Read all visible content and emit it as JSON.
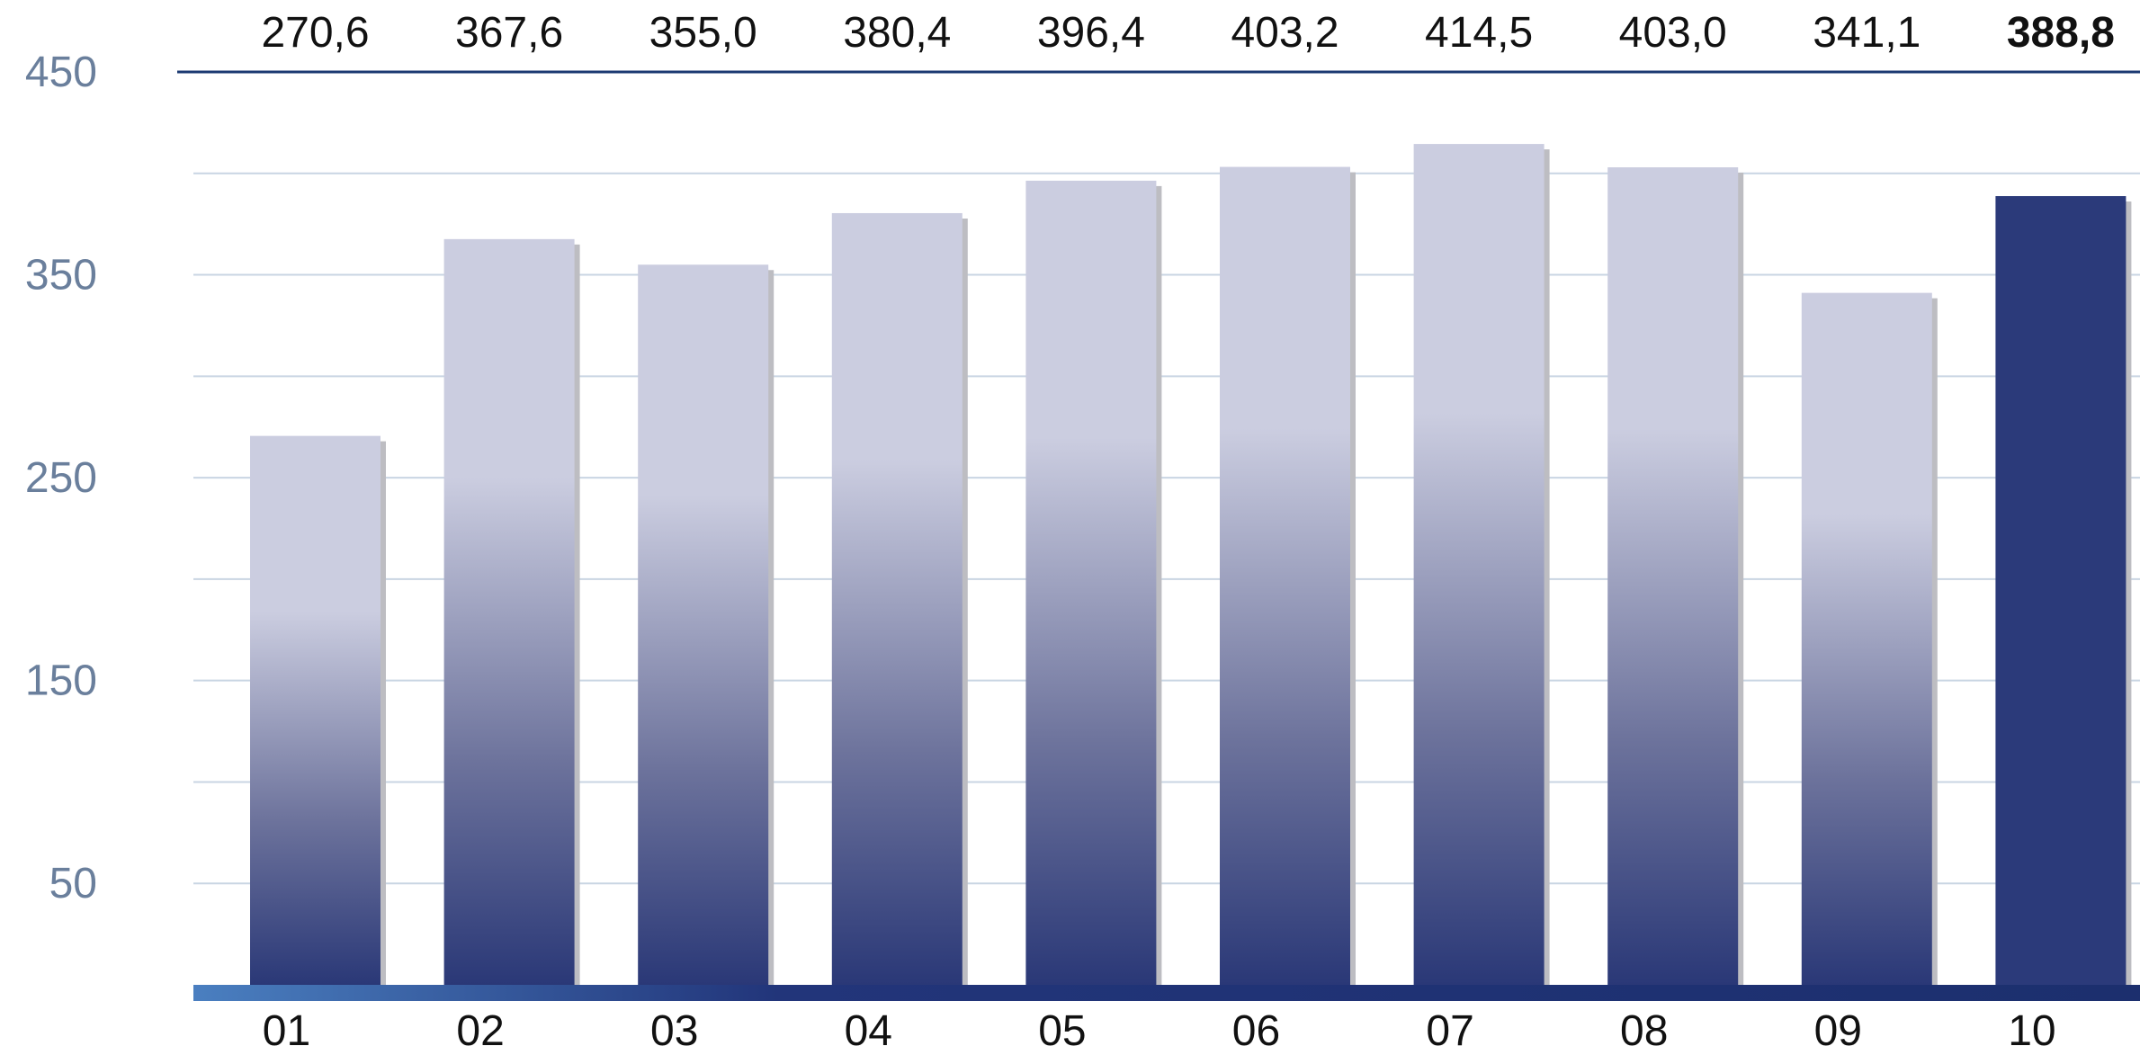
{
  "chart_data": {
    "type": "bar",
    "title": "",
    "xlabel": "",
    "ylabel": "",
    "categories": [
      "01",
      "02",
      "03",
      "04",
      "05",
      "06",
      "07",
      "08",
      "09",
      "10"
    ],
    "values": [
      270.6,
      367.6,
      355.0,
      380.4,
      396.4,
      403.2,
      414.5,
      403.0,
      341.1,
      388.8
    ],
    "value_labels": [
      "270,6",
      "367,6",
      "355,0",
      "380,4",
      "396,4",
      "403,2",
      "414,5",
      "403,0",
      "341,1",
      "388,8"
    ],
    "highlight_index": 9,
    "y_tick_labels": [
      "450",
      "350",
      "250",
      "150",
      "50"
    ],
    "y_tick_values": [
      450,
      350,
      250,
      150,
      50
    ],
    "ylim": [
      0,
      450
    ],
    "grid": true,
    "colors": {
      "bar_top": "#cbcde0",
      "bar_bottom": "#2a3877",
      "highlight": "#2b3a7a",
      "shadow": "#bdbdc2",
      "axis_line": "#1c3a72",
      "grid_line": "#c9d5e3",
      "y_tick_text": "#6a7f9c",
      "label_text": "#111111",
      "baseline_left": "#4a7fc0",
      "baseline_right": "#1c2f6e"
    }
  }
}
